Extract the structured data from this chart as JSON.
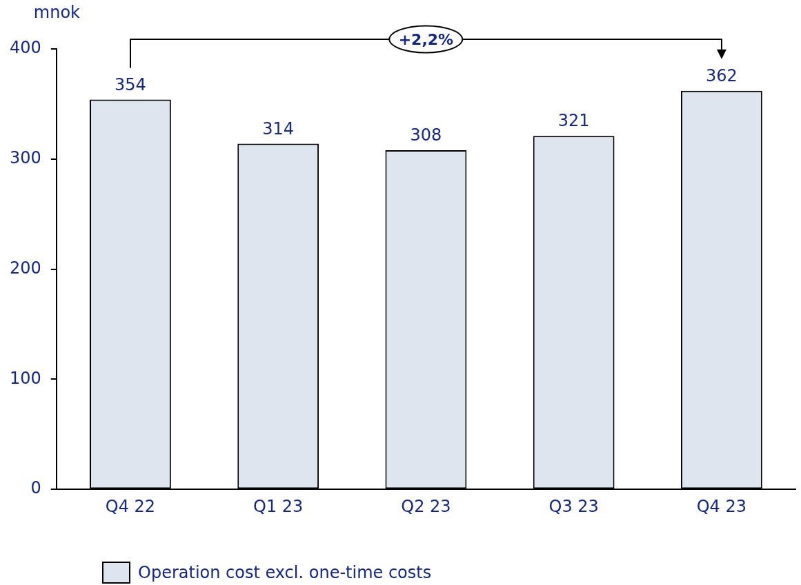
{
  "chart_data": {
    "type": "bar",
    "ylabel": "mnok",
    "categories": [
      "Q4 22",
      "Q1 23",
      "Q2 23",
      "Q3 23",
      "Q4 23"
    ],
    "series": [
      {
        "name": "Operation cost excl. one-time costs",
        "color": "#dfe5ef",
        "values": [
          354,
          314,
          308,
          321,
          362
        ]
      }
    ],
    "ylim": [
      0,
      400
    ],
    "yticks": [
      0,
      100,
      200,
      300,
      400
    ],
    "grid": false,
    "legend": "bottom",
    "data_labels": true,
    "annotations": [
      "+2,2%"
    ]
  }
}
